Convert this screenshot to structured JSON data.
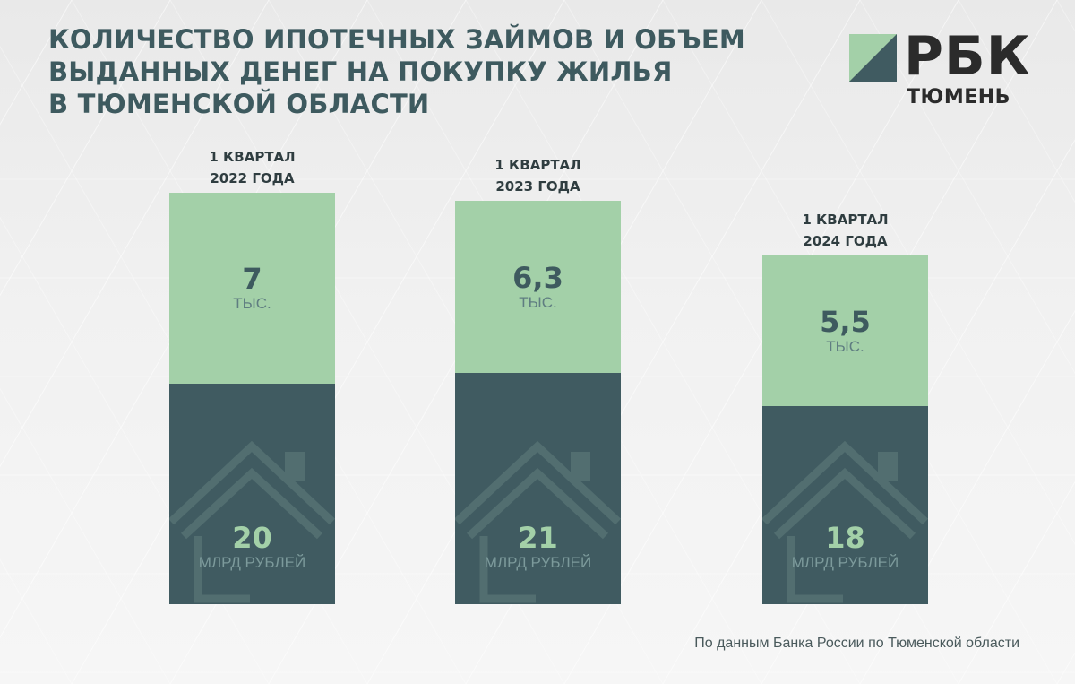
{
  "title_lines": [
    "КОЛИЧЕСТВО ИПОТЕЧНЫХ ЗАЙМОВ И ОБЪЕМ",
    "ВЫДАННЫХ ДЕНЕГ НА ПОКУПКУ ЖИЛЬЯ",
    "В ТЮМЕНСКОЙ ОБЛАСТИ"
  ],
  "logo": {
    "word": "РБК",
    "city": "ТЮМЕНЬ"
  },
  "source": "По данным Банка России по Тюменской области",
  "colors": {
    "title": "#3e5a5f",
    "count_bar": "#a3d0a8",
    "volume_bar": "#405b61",
    "house_icon": "#526e70",
    "background": "#efefef"
  },
  "icons": [
    "house-icon",
    "rbc-logo-mark"
  ],
  "chart_data": {
    "type": "bar",
    "stacked": true,
    "categories": [
      [
        "1 КВАРТАЛ",
        "2022 ГОДА"
      ],
      [
        "1 КВАРТАЛ",
        "2023 ГОДА"
      ],
      [
        "1 КВАРТАЛ",
        "2024 ГОДА"
      ]
    ],
    "series": [
      {
        "values": [
          7,
          6.3,
          5.5
        ],
        "labels": [
          "7",
          "6,3",
          "5,5"
        ],
        "unit": "ТЫС."
      },
      {
        "values": [
          20,
          21,
          18
        ],
        "labels": [
          "20",
          "21",
          "18"
        ],
        "unit": "МЛРД РУБЛЕЙ"
      }
    ],
    "grid": false,
    "legend": "none"
  }
}
